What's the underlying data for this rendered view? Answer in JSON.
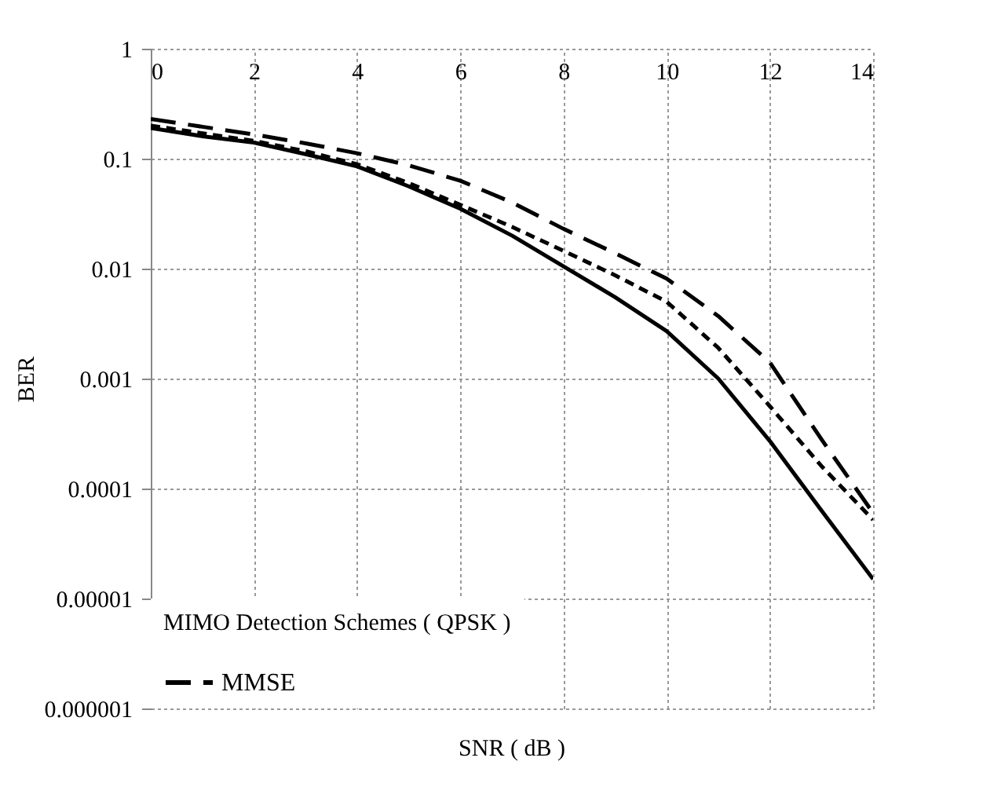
{
  "chart_data": {
    "type": "line",
    "xlabel": "SNR ( dB )",
    "ylabel": "BER",
    "legend_title": "MIMO Detection Schemes ( QPSK )",
    "log": "y",
    "grid": true,
    "legend": "bottom left",
    "marker": "none",
    "x": [
      0,
      1,
      2,
      3,
      4,
      5,
      6,
      7,
      8,
      9,
      10,
      11,
      12,
      13,
      14
    ],
    "xlim": [
      0,
      14
    ],
    "xticks": [
      0,
      2,
      4,
      6,
      8,
      10,
      12,
      14
    ],
    "ylim": [
      1e-06,
      1
    ],
    "yticks": [
      {
        "value": 1e-06,
        "label": "0.000001"
      },
      {
        "value": 1e-05,
        "label": "0.00001"
      },
      0.0001,
      0.001,
      0.01,
      0.1,
      1
    ],
    "series": [
      {
        "color": "#000000",
        "line_style": "solid",
        "values": [
          0.19,
          0.16,
          0.14,
          0.11,
          0.085,
          0.056,
          0.035,
          0.02,
          0.0105,
          0.0055,
          0.0027,
          0.001,
          0.00027,
          6.3e-05,
          1.5e-05
        ]
      },
      {
        "color": "#000000",
        "line_style": "dotted",
        "values": [
          0.2,
          0.17,
          0.145,
          0.117,
          0.089,
          0.06,
          0.038,
          0.024,
          0.0145,
          0.0087,
          0.005,
          0.0019,
          0.00056,
          0.00016,
          5.2e-05
        ]
      },
      {
        "name": "MMSE",
        "color": "#000000",
        "line_style": "dashed",
        "values": [
          0.23,
          0.195,
          0.166,
          0.138,
          0.112,
          0.087,
          0.063,
          0.04,
          0.023,
          0.0138,
          0.0081,
          0.0037,
          0.0014,
          0.00028,
          6e-05
        ]
      }
    ]
  }
}
